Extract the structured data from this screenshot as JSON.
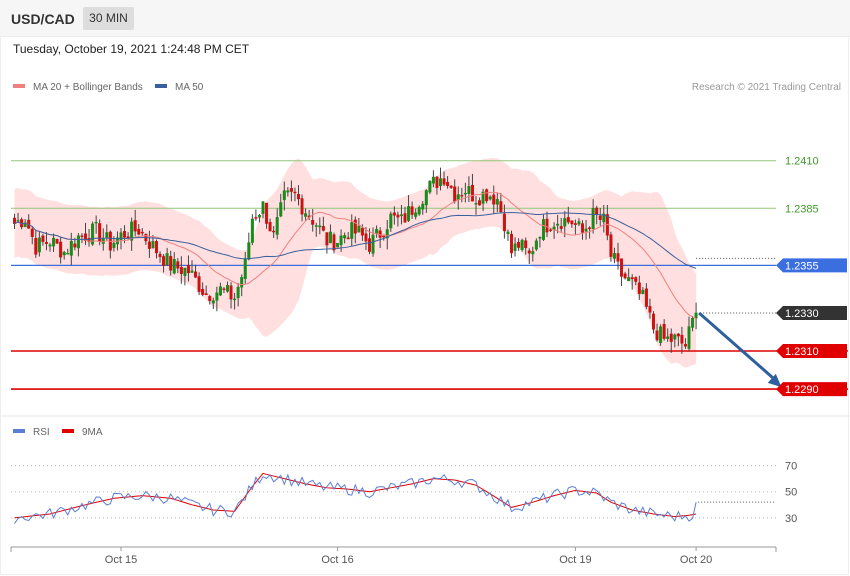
{
  "header": {
    "symbol": "USD/CAD",
    "timeframe": "30 MIN",
    "timestamp": "Tuesday, October 19, 2021 1:24:48 PM CET"
  },
  "legend_main": [
    {
      "label": "MA 20 + Bollinger Bands",
      "color": "#f08080"
    },
    {
      "label": "MA 50",
      "color": "#3a5f9e"
    }
  ],
  "legend_rsi": [
    {
      "label": "RSI",
      "color": "#5b7fd4"
    },
    {
      "label": "9MA",
      "color": "#e00000"
    }
  ],
  "credit": "Research © 2021 Trading Central",
  "colors": {
    "up": "#1b8a1b",
    "down": "#cc1111",
    "band": "#ffd7d7",
    "ma20": "#f08080",
    "ma50": "#3a5f9e",
    "green_level": "#92c77a",
    "blue_level": "#3b6fe0",
    "red_level": "#e00000",
    "arrow": "#2e5f9e",
    "last_price": "#333333"
  },
  "chart_data": [
    {
      "type": "candlestick",
      "name": "price",
      "ylim": [
        1.2279,
        1.2444
      ],
      "x_ticks": [
        {
          "label": "Oct 15",
          "index": 30
        },
        {
          "label": "Oct 16",
          "index": 91
        },
        {
          "label": "Oct 19",
          "index": 158
        },
        {
          "label": "Oct 20",
          "index": 192
        }
      ],
      "levels": [
        {
          "value": 1.241,
          "label": "1.2410",
          "style": "green"
        },
        {
          "value": 1.2385,
          "label": "1.2385",
          "style": "green"
        },
        {
          "value": 1.2355,
          "label": "1.2355",
          "style": "blue"
        },
        {
          "value": 1.233,
          "label": "1.2330",
          "style": "last"
        },
        {
          "value": 1.231,
          "label": "1.2310",
          "style": "red"
        },
        {
          "value": 1.229,
          "label": "1.2290",
          "style": "red"
        }
      ],
      "anchors": [
        [
          0,
          1.2377
        ],
        [
          3,
          1.238
        ],
        [
          6,
          1.2365
        ],
        [
          10,
          1.2368
        ],
        [
          14,
          1.2362
        ],
        [
          18,
          1.237
        ],
        [
          23,
          1.2373
        ],
        [
          27,
          1.2366
        ],
        [
          31,
          1.2372
        ],
        [
          35,
          1.2374
        ],
        [
          39,
          1.2365
        ],
        [
          44,
          1.2355
        ],
        [
          49,
          1.2352
        ],
        [
          54,
          1.234
        ],
        [
          58,
          1.2342
        ],
        [
          62,
          1.2338
        ],
        [
          65,
          1.2355
        ],
        [
          67,
          1.238
        ],
        [
          70,
          1.2386
        ],
        [
          73,
          1.237
        ],
        [
          76,
          1.239
        ],
        [
          79,
          1.2392
        ],
        [
          82,
          1.2384
        ],
        [
          85,
          1.2377
        ],
        [
          88,
          1.2368
        ],
        [
          91,
          1.2368
        ],
        [
          94,
          1.2373
        ],
        [
          97,
          1.2372
        ],
        [
          100,
          1.2366
        ],
        [
          103,
          1.2372
        ],
        [
          106,
          1.238
        ],
        [
          109,
          1.2378
        ],
        [
          112,
          1.2385
        ],
        [
          115,
          1.2392
        ],
        [
          118,
          1.2398
        ],
        [
          121,
          1.2402
        ],
        [
          124,
          1.2393
        ],
        [
          127,
          1.2395
        ],
        [
          130,
          1.2391
        ],
        [
          133,
          1.2393
        ],
        [
          136,
          1.239
        ],
        [
          138,
          1.2378
        ],
        [
          140,
          1.2362
        ],
        [
          142,
          1.2366
        ],
        [
          145,
          1.236
        ],
        [
          148,
          1.2374
        ],
        [
          151,
          1.2378
        ],
        [
          154,
          1.2379
        ],
        [
          157,
          1.2378
        ],
        [
          160,
          1.2372
        ],
        [
          163,
          1.2381
        ],
        [
          166,
          1.2378
        ],
        [
          168,
          1.236
        ],
        [
          171,
          1.235
        ],
        [
          174,
          1.2345
        ],
        [
          177,
          1.2337
        ],
        [
          180,
          1.2322
        ],
        [
          183,
          1.2316
        ],
        [
          186,
          1.2316
        ],
        [
          189,
          1.2313
        ],
        [
          191,
          1.2325
        ],
        [
          192,
          1.233
        ]
      ],
      "arrow": {
        "from": [
          192,
          1.233
        ],
        "to": [
          209,
          1.229
        ]
      }
    },
    {
      "type": "line",
      "name": "RSI",
      "ylim": [
        10,
        85
      ],
      "y_ticks": [
        70,
        50,
        30
      ],
      "rsi_anchors": [
        [
          0,
          30
        ],
        [
          10,
          33
        ],
        [
          20,
          40
        ],
        [
          28,
          45
        ],
        [
          36,
          47
        ],
        [
          44,
          45
        ],
        [
          50,
          40
        ],
        [
          56,
          36
        ],
        [
          62,
          35
        ],
        [
          67,
          54
        ],
        [
          70,
          64
        ],
        [
          76,
          60
        ],
        [
          82,
          56
        ],
        [
          88,
          53
        ],
        [
          94,
          52
        ],
        [
          100,
          50
        ],
        [
          106,
          53
        ],
        [
          112,
          56
        ],
        [
          118,
          60
        ],
        [
          124,
          59
        ],
        [
          130,
          55
        ],
        [
          136,
          45
        ],
        [
          140,
          38
        ],
        [
          146,
          42
        ],
        [
          152,
          47
        ],
        [
          158,
          51
        ],
        [
          164,
          49
        ],
        [
          168,
          42
        ],
        [
          174,
          36
        ],
        [
          180,
          33
        ],
        [
          186,
          31
        ],
        [
          190,
          32
        ],
        [
          192,
          33
        ]
      ]
    }
  ]
}
